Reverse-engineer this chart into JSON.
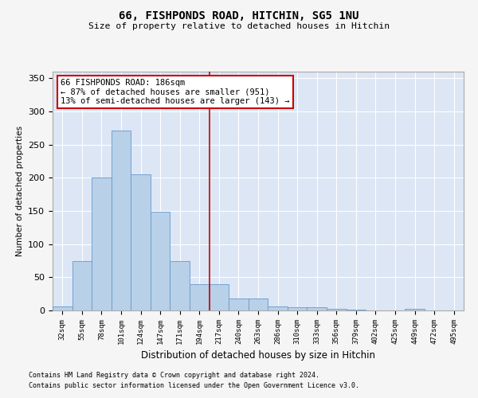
{
  "title": "66, FISHPONDS ROAD, HITCHIN, SG5 1NU",
  "subtitle": "Size of property relative to detached houses in Hitchin",
  "xlabel": "Distribution of detached houses by size in Hitchin",
  "ylabel": "Number of detached properties",
  "bar_values": [
    6,
    74,
    201,
    271,
    205,
    149,
    75,
    40,
    40,
    18,
    18,
    6,
    5,
    5,
    3,
    1,
    0,
    0,
    2,
    0,
    0
  ],
  "bar_labels": [
    "32sqm",
    "55sqm",
    "78sqm",
    "101sqm",
    "124sqm",
    "147sqm",
    "171sqm",
    "194sqm",
    "217sqm",
    "240sqm",
    "263sqm",
    "286sqm",
    "310sqm",
    "333sqm",
    "356sqm",
    "379sqm",
    "402sqm",
    "425sqm",
    "449sqm",
    "472sqm",
    "495sqm"
  ],
  "bar_color": "#b8d0e8",
  "bar_edge_color": "#6699cc",
  "vline_x": 7.5,
  "vline_color": "#cc0000",
  "annotation_text": "66 FISHPONDS ROAD: 186sqm\n← 87% of detached houses are smaller (951)\n13% of semi-detached houses are larger (143) →",
  "annotation_box_color": "#cc0000",
  "annotation_fill": "#ffffff",
  "ylim": [
    0,
    360
  ],
  "yticks": [
    0,
    50,
    100,
    150,
    200,
    250,
    300,
    350
  ],
  "background_color": "#dce6f5",
  "fig_background": "#f5f5f5",
  "footnote1": "Contains HM Land Registry data © Crown copyright and database right 2024.",
  "footnote2": "Contains public sector information licensed under the Open Government Licence v3.0."
}
